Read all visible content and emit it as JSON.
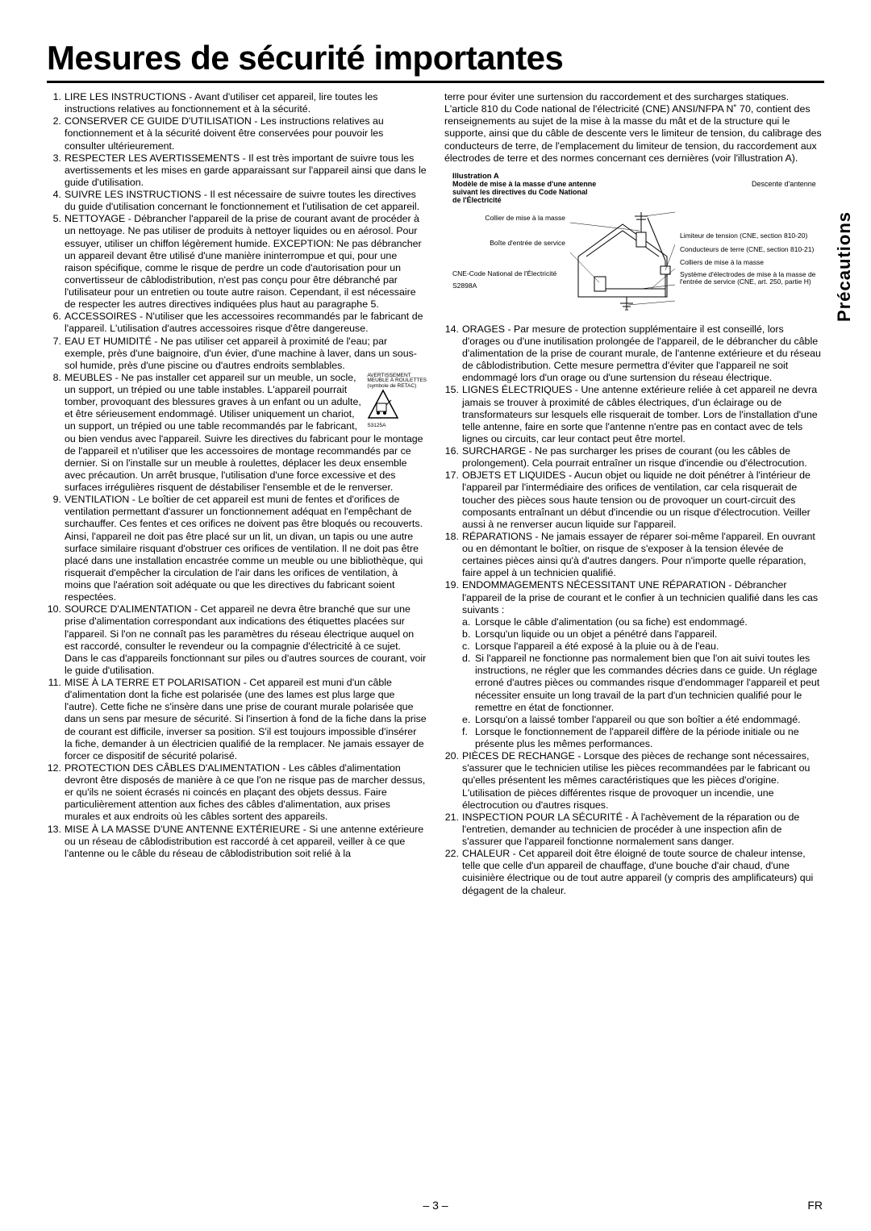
{
  "title": "Mesures de sécurité importantes",
  "sideTab": "Précautions",
  "pageNumber": "– 3 –",
  "langCode": "FR",
  "cartWarning": {
    "line1": "AVERTISSEMENT",
    "line2": "MEUBLE À ROULETTES",
    "line3": "(symbole de RETAC)",
    "code": "S3125A"
  },
  "diagram": {
    "title": "Illustration A",
    "subtitle1": "Modèle de mise à la masse d'une antenne",
    "subtitle2": "suivant les directives du Code National",
    "subtitle3": "de l'Électricité",
    "leftLabels": {
      "collier": "Collier de mise à la masse",
      "boite": "Boîte d'entrée de service",
      "cne": "CNE-Code National de l'Électricité",
      "code": "S2898A"
    },
    "rightLabels": {
      "descente": "Descente d'antenne",
      "limiteur": "Limiteur de tension (CNE, section 810-20)",
      "conducteurs": "Conducteurs de terre (CNE, section 810-21)",
      "colliers": "Colliers de mise à la masse",
      "systeme": "Système d'électrodes de mise à la masse de l'entrée de service (CNE, art. 250, partie H)"
    }
  },
  "leftItems": [
    {
      "n": "1.",
      "t": "LIRE LES INSTRUCTIONS - Avant d'utiliser cet appareil, lire toutes les instructions relatives au fonctionnement et à la sécurité."
    },
    {
      "n": "2.",
      "t": "CONSERVER CE GUIDE D'UTILISATION - Les instructions relatives au fonctionnement et à la sécurité doivent être conservées pour pouvoir les consulter ultérieurement."
    },
    {
      "n": "3.",
      "t": "RESPECTER LES AVERTISSEMENTS - Il est très important de suivre tous les avertissements et les mises en garde apparaissant sur l'appareil ainsi que dans le guide d'utilisation."
    },
    {
      "n": "4.",
      "t": "SUIVRE LES INSTRUCTIONS - Il est nécessaire de suivre toutes les directives du guide d'utilisation concernant le fonctionnement et l'utilisation de cet appareil."
    },
    {
      "n": "5.",
      "t": "NETTOYAGE - Débrancher l'appareil de la prise de courant avant de procéder à un nettoyage. Ne pas utiliser de produits à nettoyer liquides ou en aérosol. Pour essuyer, utiliser un chiffon légèrement humide. EXCEPTION: Ne pas débrancher un appareil devant être utilisé d'une manière ininterrompue et qui, pour une raison spécifique, comme le risque de perdre un code d'autorisation pour un convertisseur de câblodistribution, n'est pas conçu pour être débranché par l'utilisateur pour un entretien ou toute autre raison. Cependant, il est nécessaire de respecter les autres directives indiquées plus haut au paragraphe 5."
    },
    {
      "n": "6.",
      "t": "ACCESSOIRES - N'utiliser que les accessoires recommandés par le fabricant de l'appareil. L'utilisation d'autres accessoires risque d'être dangereuse."
    },
    {
      "n": "7.",
      "t": "EAU ET HUMIDITÉ - Ne pas utiliser cet appareil à proximité de l'eau; par exemple, près d'une baignoire, d'un évier, d'une machine à laver, dans un sous-sol humide, près d'une piscine ou d'autres endroits semblables."
    },
    {
      "n": "8.",
      "t": "MEUBLES - Ne pas installer cet appareil sur un meuble, un socle, un support, un trépied ou une table instables. L'appareil pourrait tomber, provoquant des blessures graves à un enfant ou un adulte, et être sérieusement endommagé. Utiliser uniquement un chariot, un support, un trépied ou une table recommandés par le fabricant, ou bien vendus avec l'appareil. Suivre les directives du fabricant pour le montage de l'appareil et n'utiliser que les accessoires de montage recommandés par ce dernier. Si on l'installe sur un meuble à roulettes, déplacer les deux ensemble avec précaution. Un arrêt brusque, l'utilisation d'une force excessive et des surfaces irrégulières risquent de déstabiliser l'ensemble et de le renverser."
    },
    {
      "n": "9.",
      "t": "VENTILATION - Le boîtier de cet appareil est muni de fentes et d'orifices de ventilation permettant d'assurer un fonctionnement adéquat en l'empêchant de surchauffer. Ces fentes et ces orifices ne doivent pas être bloqués ou recouverts. Ainsi, l'appareil ne doit pas être placé sur un lit, un divan, un tapis ou une autre surface similaire risquant d'obstruer ces orifices de ventilation. Il ne doit pas être placé dans une installation encastrée comme un meuble ou une bibliothèque, qui risquerait d'empêcher la circulation de l'air dans les orifices de ventilation, à moins que l'aération soit adéquate ou que les directives du fabricant soient respectées."
    },
    {
      "n": "10.",
      "t": "SOURCE D'ALIMENTATION - Cet appareil ne devra être branché que sur une prise d'alimentation correspondant aux indications des étiquettes placées sur l'appareil. Si l'on ne connaît pas les paramètres du réseau électrique auquel on est raccordé, consulter le revendeur ou la compagnie d'électricité à ce sujet. Dans le cas d'appareils fonctionnant sur piles ou d'autres sources de courant, voir le guide d'utilisation."
    },
    {
      "n": "11.",
      "t": "MISE À LA TERRE ET POLARISATION - Cet appareil est muni d'un câble d'alimentation dont la fiche est polarisée (une des lames est plus large que l'autre). Cette fiche ne s'insère dans une prise de courant murale polarisée que dans un sens par mesure de sécurité. Si l'insertion à fond de la fiche dans la prise de courant est difficile, inverser sa position. S'il est toujours impossible d'insérer la fiche, demander à un électricien qualifié de la remplacer. Ne jamais essayer de forcer ce dispositif de sécurité polarisé."
    },
    {
      "n": "12.",
      "t": "PROTECTION DES CÂBLES D'ALIMENTATION - Les câbles d'alimentation devront être disposés de manière à ce que l'on ne risque pas de marcher dessus, er qu'ils ne soient écrasés ni coincés en plaçant des objets dessus. Faire particulièrement attention aux fiches des câbles d'alimentation, aux prises murales et aux endroits où les câbles sortent des appareils."
    },
    {
      "n": "13.",
      "t": "MISE À LA MASSE D'UNE ANTENNE EXTÉRIEURE - Si une antenne extérieure ou un réseau de câblodistribution est raccordé à cet appareil, veiller à ce que l'antenne ou le câble du réseau de câblodistribution soit relié à la"
    }
  ],
  "rightIntro": "terre pour éviter une surtension du raccordement et des surcharges statiques. L'article 810 du Code national de l'électricité (CNE) ANSI/NFPA N˚ 70, contient des renseignements au sujet de la mise à la masse du mât et de la structure qui le supporte, ainsi que du câble de descente vers le limiteur de tension, du calibrage des conducteurs de terre, de l'emplacement du limiteur de tension, du raccordement aux électrodes de terre et des normes concernant ces dernières (voir l'illustration A).",
  "rightItems": [
    {
      "n": "14.",
      "t": "ORAGES - Par mesure de protection supplémentaire il est conseillé, lors d'orages ou d'une inutilisation prolongée de l'appareil, de le débrancher du câble d'alimentation de la prise de courant murale, de l'antenne extérieure et du réseau de câblodistribution. Cette mesure permettra d'éviter que l'appareil ne soit endommagé lors d'un orage ou d'une surtension du réseau électrique."
    },
    {
      "n": "15.",
      "t": "LIGNES ÉLECTRIQUES - Une antenne extérieure reliée à cet appareil ne devra jamais se trouver à proximité de câbles électriques, d'un éclairage ou de transformateurs sur lesquels elle risquerait de tomber. Lors de l'installation d'une telle antenne, faire en sorte que l'antenne n'entre pas en contact avec de tels lignes ou circuits, car leur contact peut être mortel."
    },
    {
      "n": "16.",
      "t": "SURCHARGE - Ne pas surcharger les prises de courant (ou les câbles de prolongement). Cela pourrait entraîner un risque d'incendie ou d'électrocution."
    },
    {
      "n": "17.",
      "t": "OBJETS ET LIQUIDES - Aucun objet ou liquide ne doit pénétrer à l'intérieur de l'appareil par l'intermédiaire des orifices de ventilation, car cela risquerait de toucher des pièces sous haute tension ou de provoquer un court-circuit des composants entraînant un début d'incendie ou un risque d'électrocution. Veiller aussi à ne renverser aucun liquide sur l'appareil."
    },
    {
      "n": "18.",
      "t": "RÉPARATIONS - Ne jamais essayer de réparer soi-même l'appareil. En ouvrant ou en démontant le boîtier, on risque de s'exposer à la tension élevée de certaines pièces ainsi qu'à d'autres dangers. Pour n'importe quelle réparation, faire appel à un technicien qualifié."
    },
    {
      "n": "19.",
      "t": "ENDOMMAGEMENTS NÉCESSITANT UNE RÉPARATION - Débrancher l'appareil de la prise de courant et le confier à un technicien qualifié dans les cas suivants :"
    }
  ],
  "subItems": [
    {
      "l": "a.",
      "t": "Lorsque le câble d'alimentation (ou sa fiche) est endommagé."
    },
    {
      "l": "b.",
      "t": "Lorsqu'un liquide ou un objet a pénétré dans l'appareil."
    },
    {
      "l": "c.",
      "t": "Lorsque l'appareil a été exposé à la pluie ou à de l'eau."
    },
    {
      "l": "d.",
      "t": "Si l'appareil ne fonctionne pas normalement bien que l'on ait suivi toutes les instructions, ne régler que les commandes décries dans ce guide. Un réglage erroné d'autres pièces ou commandes risque d'endommager l'appareil et peut nécessiter ensuite un long travail de la part d'un technicien qualifié pour le remettre en état de fonctionner."
    },
    {
      "l": "e.",
      "t": "Lorsqu'on a laissé tomber l'appareil ou que son boîtier a été endommagé."
    },
    {
      "l": "f.",
      "t": "Lorsque le fonctionnement de l'appareil diffère de la période initiale ou ne présente plus les mêmes performances."
    }
  ],
  "rightItems2": [
    {
      "n": "20.",
      "t": "PIÈCES DE RECHANGE - Lorsque des pièces de rechange sont nécessaires, s'assurer que le technicien utilise les pièces recommandées par le fabricant ou qu'elles présentent les mêmes caractéristiques que les pièces d'origine. L'utilisation de pièces différentes risque de provoquer un incendie, une électrocution ou d'autres risques."
    },
    {
      "n": "21.",
      "t": "INSPECTION POUR LA SÉCURITÉ - À l'achèvement de la réparation ou de l'entretien, demander au technicien de procéder à une inspection afin de s'assurer que l'appareil fonctionne normalement sans danger."
    },
    {
      "n": "22.",
      "t": "CHALEUR - Cet appareil doit être éloigné de toute source de chaleur intense, telle que celle d'un appareil de chauffage, d'une bouche d'air chaud, d'une cuisinière électrique ou de tout autre appareil (y compris des amplificateurs) qui dégagent de la chaleur."
    }
  ]
}
